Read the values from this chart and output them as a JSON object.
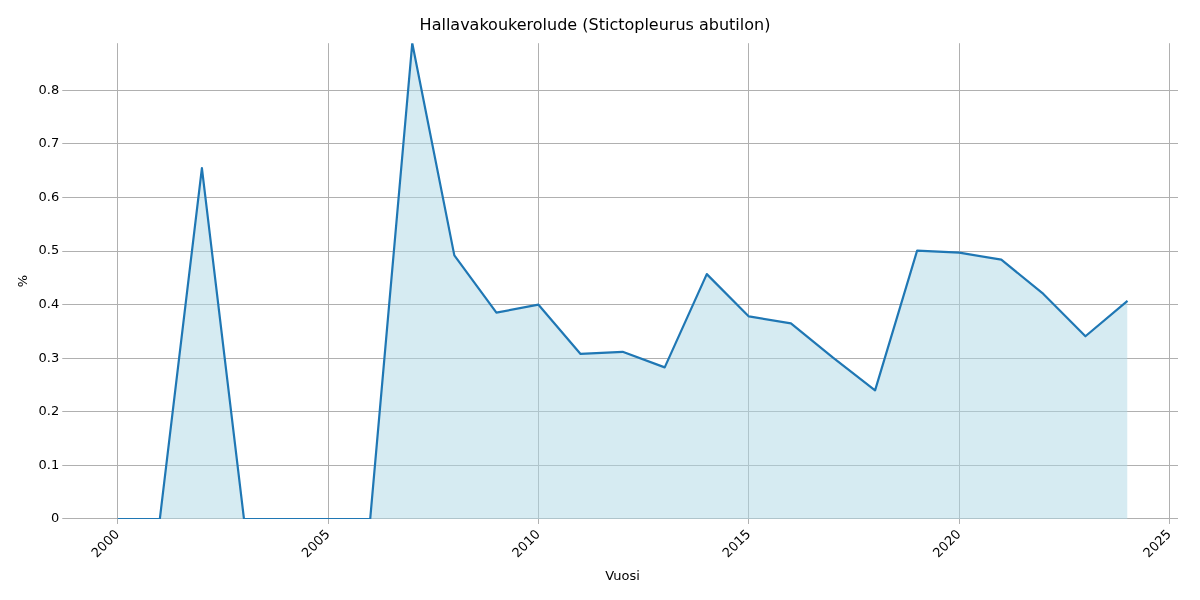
{
  "chart_data": {
    "type": "area",
    "title": "Hallavakoukerolude (Stictopleurus abutilon)",
    "xlabel": "Vuosi",
    "ylabel": "%",
    "x": [
      2000,
      2001,
      2002,
      2003,
      2004,
      2005,
      2006,
      2007,
      2008,
      2009,
      2010,
      2011,
      2012,
      2013,
      2014,
      2015,
      2016,
      2017,
      2018,
      2019,
      2020,
      2021,
      2022,
      2023,
      2024
    ],
    "series": [
      {
        "color": "#1f77b4",
        "values": [
          0,
          0,
          0.655,
          0,
          0,
          0,
          0,
          0.888,
          0.492,
          0.385,
          0.4,
          0.308,
          0.312,
          0.283,
          0.457,
          0.378,
          0.365,
          0.301,
          0.24,
          0.501,
          0.497,
          0.484,
          0.42,
          0.341,
          0.407
        ]
      }
    ],
    "xlim": [
      1998.8,
      2025.2
    ],
    "xticks": [
      2000,
      2005,
      2010,
      2015,
      2020,
      2025
    ],
    "ylim": [
      0,
      0.888
    ],
    "yticks": [
      0,
      0.1,
      0.2,
      0.3,
      0.4,
      0.5,
      0.6,
      0.7,
      0.8
    ],
    "grid": true,
    "legend": false
  }
}
